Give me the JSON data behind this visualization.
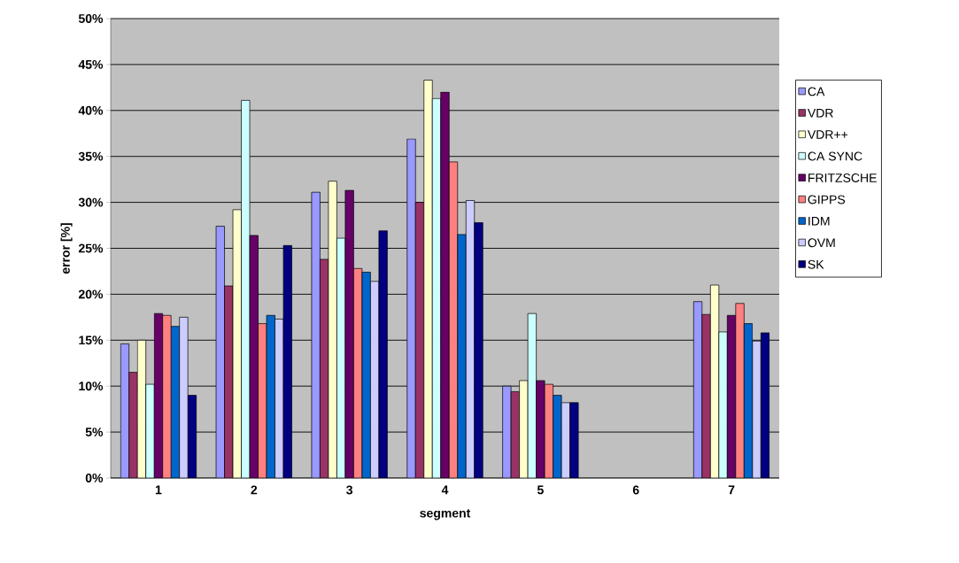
{
  "chart_data": {
    "type": "bar",
    "xlabel": "segment",
    "ylabel": "error [%]",
    "categories": [
      "1",
      "2",
      "3",
      "4",
      "5",
      "6",
      "7"
    ],
    "series": [
      {
        "name": "CA",
        "color": "#9999ff",
        "values": [
          14.6,
          27.4,
          31.1,
          36.9,
          10.0,
          null,
          19.2
        ]
      },
      {
        "name": "VDR",
        "color": "#993366",
        "values": [
          11.5,
          20.9,
          23.8,
          30.0,
          9.4,
          null,
          17.8
        ]
      },
      {
        "name": "VDR++",
        "color": "#ffffcc",
        "values": [
          15.0,
          29.2,
          32.3,
          43.3,
          10.6,
          null,
          21.0
        ]
      },
      {
        "name": "CA SYNC",
        "color": "#ccffff",
        "values": [
          10.2,
          41.1,
          26.1,
          41.3,
          17.9,
          null,
          15.9
        ]
      },
      {
        "name": "FRITZSCHE",
        "color": "#660066",
        "values": [
          17.9,
          26.4,
          31.3,
          42.0,
          10.6,
          null,
          17.7
        ]
      },
      {
        "name": "GIPPS",
        "color": "#ff8080",
        "values": [
          17.7,
          16.8,
          22.8,
          34.4,
          10.2,
          null,
          19.0
        ]
      },
      {
        "name": "IDM",
        "color": "#0066cc",
        "values": [
          16.5,
          17.7,
          22.4,
          26.5,
          9.0,
          null,
          16.8
        ]
      },
      {
        "name": "OVM",
        "color": "#ccccff",
        "values": [
          17.5,
          17.3,
          21.4,
          30.2,
          8.2,
          null,
          14.9
        ]
      },
      {
        "name": "SK",
        "color": "#000080",
        "values": [
          9.0,
          25.3,
          26.9,
          27.8,
          8.2,
          null,
          15.8
        ]
      }
    ],
    "ylim": [
      0,
      50
    ],
    "yticks": [
      {
        "value": 0,
        "label": "0%"
      },
      {
        "value": 5,
        "label": "5%"
      },
      {
        "value": 10,
        "label": "10%"
      },
      {
        "value": 15,
        "label": "15%"
      },
      {
        "value": 20,
        "label": "20%"
      },
      {
        "value": 25,
        "label": "25%"
      },
      {
        "value": 30,
        "label": "30%"
      },
      {
        "value": 35,
        "label": "35%"
      },
      {
        "value": 40,
        "label": "40%"
      },
      {
        "value": 45,
        "label": "45%"
      },
      {
        "value": 50,
        "label": "50%"
      }
    ],
    "grid": "y",
    "legend": "right"
  }
}
